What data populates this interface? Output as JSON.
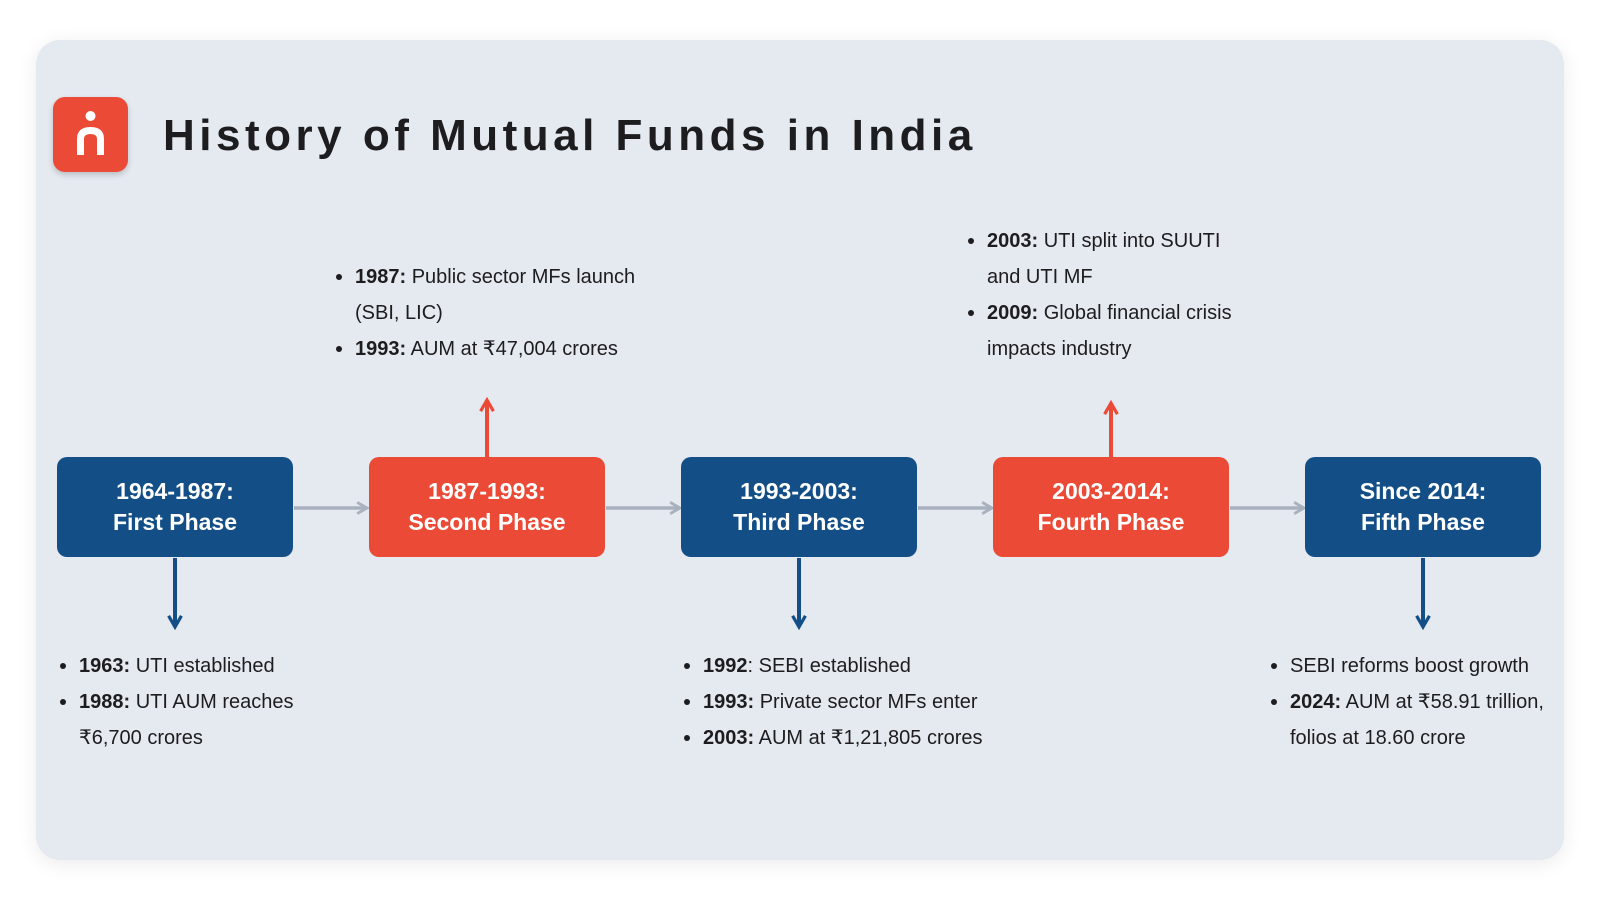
{
  "title": "History of Mutual Funds in India",
  "colors": {
    "background": "#e5e9f0",
    "blue": "#134f86",
    "red": "#ea4a36",
    "connector": "#a8b1bd"
  },
  "logo": {
    "icon": "person-icon"
  },
  "phases": [
    {
      "period": "1964-1987:",
      "name": "First Phase",
      "color": "blue",
      "notes_position": "below",
      "notes": [
        {
          "year": "1963:",
          "text": " UTI established"
        },
        {
          "year": "1988:",
          "text": " UTI AUM reaches ₹6,700 crores"
        }
      ]
    },
    {
      "period": "1987-1993:",
      "name": "Second Phase",
      "color": "red",
      "notes_position": "above",
      "notes": [
        {
          "year": "1987:",
          "text": " Public sector MFs launch (SBI, LIC)"
        },
        {
          "year": "1993:",
          "text": " AUM at ₹47,004 crores"
        }
      ]
    },
    {
      "period": "1993-2003:",
      "name": "Third Phase",
      "color": "blue",
      "notes_position": "below",
      "notes": [
        {
          "year": "1992",
          "text": ": SEBI established"
        },
        {
          "year": "1993:",
          "text": " Private sector MFs enter"
        },
        {
          "year": "2003:",
          "text": " AUM at ₹1,21,805 crores"
        }
      ]
    },
    {
      "period": "2003-2014:",
      "name": "Fourth Phase",
      "color": "red",
      "notes_position": "above",
      "notes": [
        {
          "year": "2003:",
          "text": " UTI split into SUUTI and UTI MF"
        },
        {
          "year": "2009:",
          "text": " Global financial crisis impacts industry"
        }
      ]
    },
    {
      "period": "Since 2014:",
      "name": "Fifth Phase",
      "color": "blue",
      "notes_position": "below",
      "notes": [
        {
          "year": "",
          "text": "SEBI reforms boost growth"
        },
        {
          "year": "2024:",
          "text": " AUM at ₹58.91 trillion, folios at 18.60 crore"
        }
      ]
    }
  ]
}
